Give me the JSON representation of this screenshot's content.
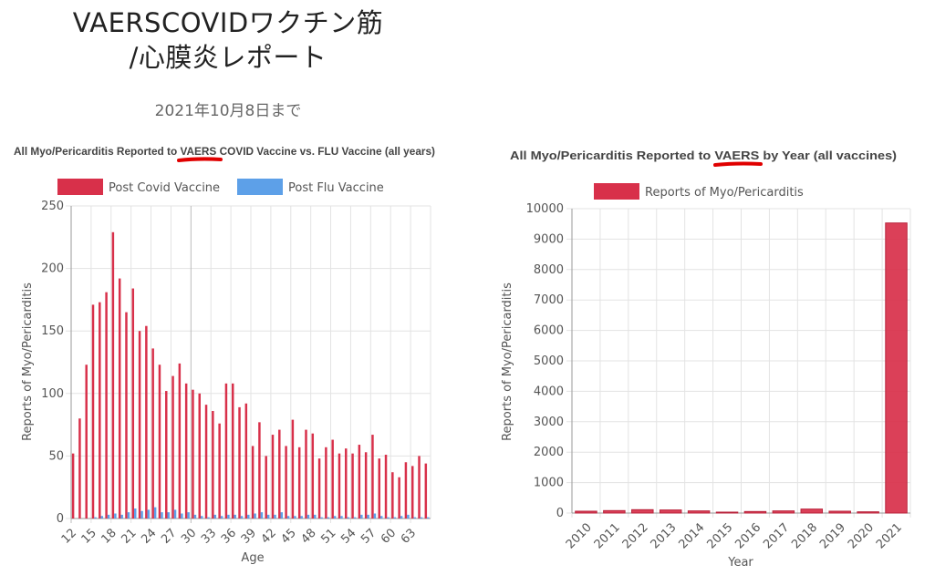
{
  "page": {
    "title_line1": "VAERSCOVIDワクチン筋",
    "title_line2": "/心膜炎レポート",
    "subtitle": "2021年10月8日まで"
  },
  "colors": {
    "covid": "#d8304a",
    "flu": "#5da0e8",
    "annotation": "#e00000"
  },
  "chart_data": [
    {
      "type": "bar",
      "title": "All Myo/Pericarditis Reported to VAERS COVID Vaccine vs. FLU Vaccine (all years)",
      "title_parts": [
        "All Myo/Pericarditis Reported to ",
        "VAERS",
        " COVID Vaccine vs. FLU Vaccine (all years)"
      ],
      "underlined_word": "VAERS",
      "xlabel": "Age",
      "ylabel": "Reports of Myo/Pericarditis",
      "ylim": [
        0,
        250
      ],
      "yticks": [
        0,
        50,
        100,
        150,
        200,
        250
      ],
      "categories": [
        12,
        13,
        14,
        15,
        16,
        17,
        18,
        19,
        20,
        21,
        22,
        23,
        24,
        25,
        26,
        27,
        28,
        29,
        30,
        31,
        32,
        33,
        34,
        35,
        36,
        37,
        38,
        39,
        40,
        41,
        42,
        43,
        44,
        45,
        46,
        47,
        48,
        49,
        50,
        51,
        52,
        53,
        54,
        55,
        56,
        57,
        58,
        59,
        60,
        61,
        62,
        63,
        64,
        65
      ],
      "xtick_labels": [
        "12",
        "15",
        "18",
        "21",
        "24",
        "27",
        "30",
        "33",
        "36",
        "39",
        "42",
        "45",
        "48",
        "51",
        "54",
        "57",
        "60",
        "63"
      ],
      "legend_position": "top",
      "series": [
        {
          "name": "Post Covid Vaccine",
          "color": "#d8304a",
          "values": [
            52,
            80,
            123,
            171,
            173,
            181,
            229,
            192,
            165,
            184,
            150,
            154,
            136,
            123,
            102,
            114,
            124,
            108,
            103,
            100,
            91,
            86,
            76,
            108,
            108,
            89,
            92,
            58,
            77,
            50,
            67,
            71,
            58,
            79,
            57,
            71,
            68,
            48,
            57,
            63,
            52,
            56,
            52,
            59,
            53,
            67,
            48,
            51,
            37,
            33,
            45,
            42,
            50,
            44
          ]
        },
        {
          "name": "Post Flu Vaccine",
          "color": "#5da0e8",
          "values": [
            0,
            0,
            0,
            1,
            2,
            3,
            4,
            3,
            5,
            8,
            6,
            7,
            9,
            5,
            5,
            7,
            4,
            5,
            3,
            2,
            1,
            3,
            2,
            3,
            3,
            2,
            3,
            4,
            5,
            3,
            3,
            5,
            2,
            2,
            2,
            3,
            3,
            1,
            1,
            2,
            2,
            1,
            1,
            3,
            3,
            4,
            2,
            1,
            1,
            2,
            3,
            1,
            1,
            1
          ]
        }
      ]
    },
    {
      "type": "bar",
      "title": "All Myo/Pericarditis Reported to VAERS by Year (all vaccines)",
      "title_parts": [
        "All Myo/Pericarditis Reported to ",
        "VAERS",
        " by Year (all vaccines)"
      ],
      "underlined_word": "VAERS",
      "xlabel": "Year",
      "ylabel": "Reports of Myo/Pericarditis",
      "ylim": [
        0,
        10000
      ],
      "yticks": [
        0,
        1000,
        2000,
        3000,
        4000,
        5000,
        6000,
        7000,
        8000,
        9000,
        10000
      ],
      "categories": [
        "2010",
        "2011",
        "2012",
        "2013",
        "2014",
        "2015",
        "2016",
        "2017",
        "2018",
        "2019",
        "2020",
        "2021"
      ],
      "legend_position": "top",
      "series": [
        {
          "name": "Reports of Myo/Pericarditis",
          "color": "#d8304a",
          "values": [
            60,
            80,
            110,
            100,
            70,
            30,
            50,
            70,
            130,
            60,
            40,
            9530
          ]
        }
      ]
    }
  ]
}
